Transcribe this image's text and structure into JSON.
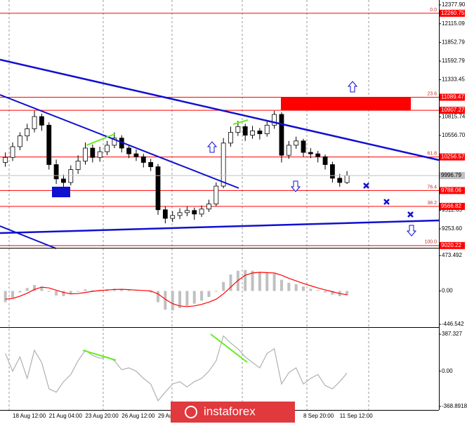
{
  "chart_data": [
    {
      "type": "candlestick",
      "categories": [
        null,
        "18 Aug 12:00",
        null,
        null,
        null,
        null,
        "21 Aug 04:00",
        null,
        null,
        null,
        null,
        "23 Aug 20:00",
        null,
        null,
        null,
        null,
        "26 Aug 12:00",
        null,
        null,
        null,
        null,
        "29 Au",
        null,
        null,
        null,
        null,
        null,
        null,
        null,
        null,
        null,
        null,
        null,
        null,
        null,
        null,
        null,
        null,
        null,
        null,
        null,
        "8 Sep 20:00",
        null,
        null,
        null,
        null,
        "11 Sep 12:00",
        null
      ],
      "open": [
        10180,
        10250,
        10400,
        10550,
        10650,
        10820,
        10700,
        10150,
        9950,
        9900,
        10080,
        10200,
        10380,
        10250,
        10330,
        10420,
        10520,
        10380,
        10300,
        10260,
        10180,
        10120,
        9520,
        9400,
        9440,
        9480,
        9510,
        9460,
        9530,
        9600,
        9850,
        10450,
        10600,
        10680,
        10560,
        10620,
        10580,
        10700,
        10850,
        10280,
        10420,
        10480,
        10320,
        10300,
        10260,
        10150,
        9960,
        9900
      ],
      "high": [
        10320,
        10460,
        10600,
        10720,
        10900,
        10860,
        10740,
        10220,
        10010,
        10140,
        10280,
        10460,
        10430,
        10400,
        10480,
        10600,
        10560,
        10420,
        10360,
        10300,
        10230,
        10160,
        9570,
        9500,
        9540,
        9570,
        9550,
        9580,
        9660,
        9900,
        10520,
        10680,
        10760,
        10720,
        10690,
        10660,
        10760,
        10900,
        10880,
        10480,
        10540,
        10510,
        10380,
        10340,
        10290,
        10190,
        10020,
        10060
      ],
      "low": [
        10120,
        10200,
        10350,
        10480,
        10600,
        10620,
        10080,
        9880,
        9820,
        9860,
        10020,
        10150,
        10180,
        10190,
        10280,
        10380,
        10320,
        10240,
        10200,
        10110,
        10060,
        9450,
        9330,
        9350,
        9390,
        9430,
        9380,
        9420,
        9490,
        9570,
        9820,
        10400,
        10550,
        10480,
        10510,
        10500,
        10540,
        10650,
        10180,
        10230,
        10370,
        10260,
        10240,
        10180,
        10080,
        9900,
        9840,
        9880
      ],
      "close": [
        10250,
        10400,
        10550,
        10650,
        10820,
        10700,
        10150,
        9950,
        9900,
        10080,
        10200,
        10380,
        10250,
        10330,
        10420,
        10520,
        10380,
        10300,
        10260,
        10180,
        10120,
        9520,
        9400,
        9440,
        9480,
        9510,
        9460,
        9530,
        9600,
        9850,
        10450,
        10600,
        10680,
        10560,
        10620,
        10580,
        10700,
        10850,
        10280,
        10420,
        10480,
        10320,
        10300,
        10260,
        10150,
        9960,
        9900,
        9996.79
      ],
      "ylim": [
        8999,
        12446
      ],
      "yticks": [
        {
          "value": 12377.9,
          "label": "12377.90"
        },
        12115.09,
        11852.79,
        11592.79,
        11333.45,
        10815.74,
        {
          "value": 10556.7,
          "label": "10556.70"
        },
        9512.65,
        {
          "value": 9253.6,
          "label": "9253.60"
        }
      ],
      "levels": [
        {
          "label": "0.0",
          "value": 12260.75
        },
        {
          "label": "23.6",
          "value": 11089.47
        },
        {
          "value": 10907.27
        },
        {
          "label": "61.8",
          "value": 10256.57
        },
        {
          "label": "76.4",
          "value": 9788.06
        },
        {
          "label": "38.2",
          "value": 9566.82
        },
        {
          "label": "100.0",
          "value": 9020.22
        }
      ],
      "level_color": "#ff0000",
      "price_box_color": "#c0c0c0"
    },
    {
      "type": "macd",
      "series": [
        {
          "name": "histogram",
          "color": "#c0c0c0",
          "values": [
            -150,
            -90,
            -20,
            40,
            80,
            60,
            -10,
            -60,
            -70,
            -40,
            -10,
            20,
            10,
            15,
            25,
            30,
            20,
            10,
            5,
            0,
            -20,
            -150,
            -250,
            -260,
            -230,
            -200,
            -170,
            -130,
            -80,
            -10,
            120,
            220,
            270,
            280,
            270,
            250,
            240,
            230,
            150,
            110,
            90,
            60,
            30,
            10,
            -20,
            -50,
            -70,
            -60
          ]
        },
        {
          "name": "signal",
          "color": "#ff0000",
          "values": [
            -110,
            -100,
            -70,
            -30,
            20,
            50,
            40,
            10,
            -20,
            -40,
            -35,
            -20,
            -5,
            5,
            12,
            20,
            22,
            18,
            12,
            6,
            0,
            -40,
            -110,
            -170,
            -200,
            -210,
            -200,
            -180,
            -150,
            -110,
            -40,
            50,
            140,
            210,
            240,
            250,
            245,
            240,
            210,
            170,
            135,
            100,
            70,
            40,
            15,
            -10,
            -35,
            -50
          ]
        }
      ],
      "ylim": [
        -484,
        568
      ],
      "yticks": [
        473.492,
        {
          "value": 0,
          "label": "0.00"
        },
        -446.542
      ]
    },
    {
      "type": "line",
      "series": [
        {
          "name": "oscillator",
          "color": "#b0b0b0",
          "values": [
            185,
            0,
            150,
            -75,
            220,
            90,
            -185,
            -220,
            -110,
            -35,
            110,
            220,
            165,
            135,
            150,
            110,
            15,
            35,
            0,
            -75,
            -135,
            -310,
            -220,
            -135,
            -110,
            -165,
            -110,
            -75,
            0,
            110,
            370,
            295,
            235,
            150,
            90,
            35,
            185,
            235,
            -135,
            -15,
            35,
            -135,
            -75,
            -35,
            -150,
            -185,
            -110,
            -20
          ]
        }
      ],
      "ylim": [
        -406,
        447
      ],
      "yticks": [
        387.327,
        {
          "value": 0,
          "label": "0.00"
        },
        -368.8918
      ]
    }
  ],
  "watermark": "instaforex"
}
